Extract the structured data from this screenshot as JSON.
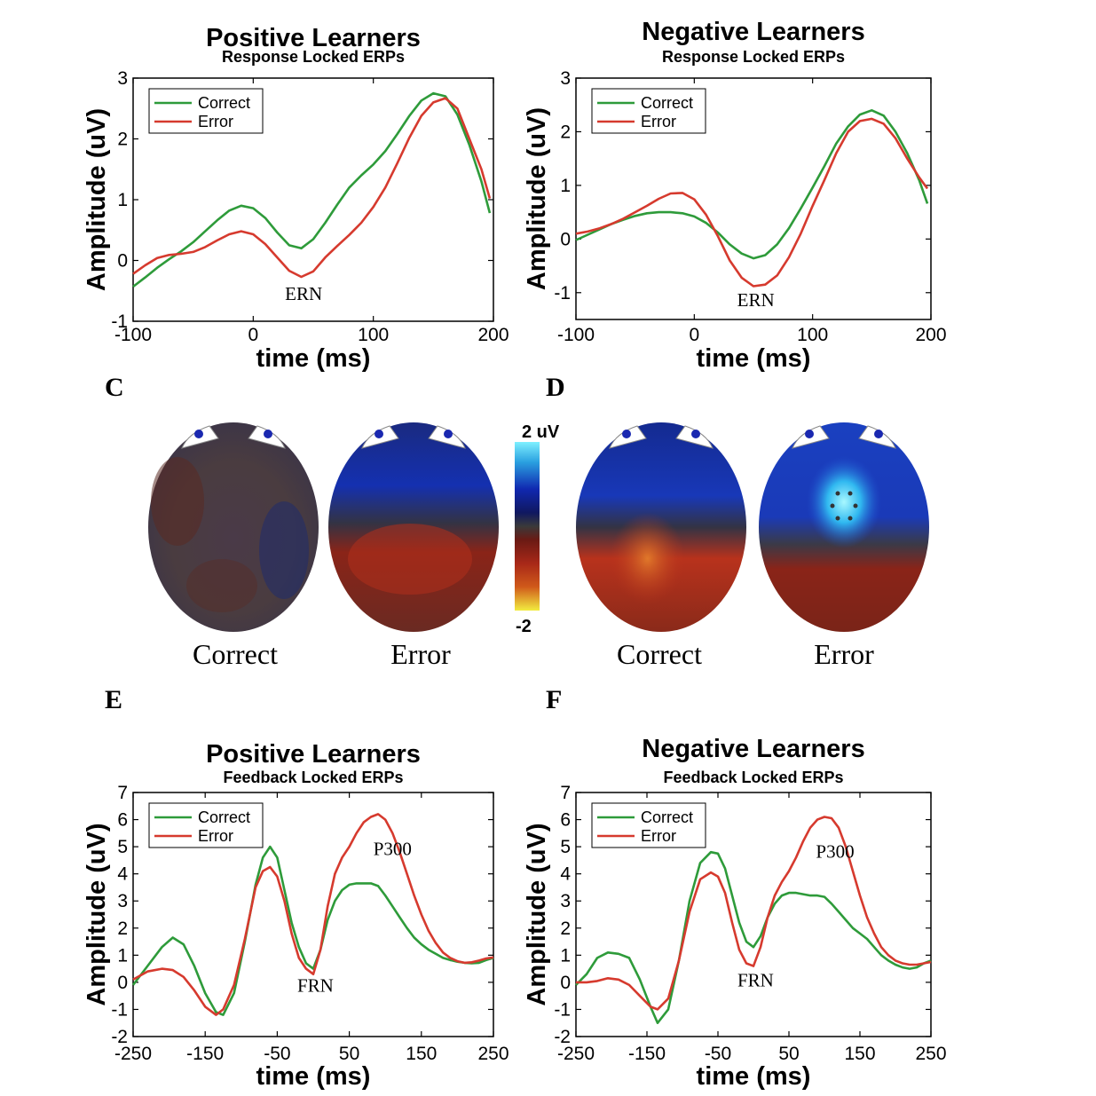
{
  "colors": {
    "correct": "#2e9b3a",
    "error": "#d63a2e"
  },
  "panels": {
    "A": "",
    "B": "",
    "C": "C",
    "D": "D",
    "E": "E",
    "F": "F"
  },
  "topomaps": {
    "colorbar_max": "2 uV",
    "colorbar_min": "-2",
    "labels": [
      "Correct",
      "Error",
      "Correct",
      "Error"
    ]
  },
  "chart_data": [
    {
      "type": "line",
      "title": "Positive Learners",
      "subtitle": "Response Locked ERPs",
      "xlabel": "time (ms)",
      "ylabel": "Amplitude (uV)",
      "xlim": [
        -100,
        200
      ],
      "ylim": [
        -1,
        3
      ],
      "xticks": [
        "-100",
        "0",
        "100",
        "200"
      ],
      "yticks": [
        "-1",
        "0",
        "1",
        "2",
        "3"
      ],
      "legend": {
        "position": "top-left",
        "entries": [
          "Correct",
          "Error"
        ]
      },
      "annotations": [
        {
          "text": "ERN",
          "x": 42,
          "y": -0.65
        }
      ],
      "series": [
        {
          "name": "Correct",
          "x": [
            -100,
            -90,
            -80,
            -70,
            -60,
            -50,
            -40,
            -30,
            -20,
            -10,
            0,
            10,
            20,
            30,
            40,
            50,
            60,
            70,
            80,
            90,
            100,
            110,
            120,
            130,
            140,
            150,
            160,
            170,
            180,
            190,
            197
          ],
          "y": [
            -0.43,
            -0.28,
            -0.12,
            0.02,
            0.15,
            0.3,
            0.48,
            0.66,
            0.82,
            0.9,
            0.86,
            0.7,
            0.46,
            0.25,
            0.2,
            0.35,
            0.62,
            0.92,
            1.2,
            1.4,
            1.58,
            1.8,
            2.08,
            2.38,
            2.63,
            2.75,
            2.7,
            2.4,
            1.9,
            1.3,
            0.78
          ]
        },
        {
          "name": "Error",
          "x": [
            -100,
            -90,
            -80,
            -70,
            -60,
            -50,
            -40,
            -30,
            -20,
            -10,
            0,
            10,
            20,
            30,
            40,
            50,
            60,
            70,
            80,
            90,
            100,
            110,
            120,
            130,
            140,
            150,
            160,
            170,
            180,
            190,
            197
          ],
          "y": [
            -0.22,
            -0.08,
            0.04,
            0.09,
            0.11,
            0.14,
            0.22,
            0.33,
            0.43,
            0.48,
            0.43,
            0.27,
            0.05,
            -0.17,
            -0.27,
            -0.18,
            0.05,
            0.24,
            0.42,
            0.62,
            0.88,
            1.2,
            1.6,
            2.02,
            2.38,
            2.6,
            2.67,
            2.5,
            2.0,
            1.5,
            1.02
          ]
        }
      ]
    },
    {
      "type": "line",
      "title": "Negative Learners",
      "subtitle": "Response Locked ERPs",
      "xlabel": "time (ms)",
      "ylabel": "Amplitude (uV)",
      "xlim": [
        -100,
        200
      ],
      "ylim": [
        -1.5,
        3
      ],
      "xticks": [
        "-100",
        "0",
        "100",
        "200"
      ],
      "yticks": [
        "-1",
        "0",
        "1",
        "2",
        "3"
      ],
      "legend": {
        "position": "top-left",
        "entries": [
          "Correct",
          "Error"
        ]
      },
      "annotations": [
        {
          "text": "ERN",
          "x": 52,
          "y": -1.25
        }
      ],
      "series": [
        {
          "name": "Correct",
          "x": [
            -100,
            -90,
            -80,
            -70,
            -60,
            -50,
            -40,
            -30,
            -20,
            -10,
            0,
            10,
            20,
            30,
            40,
            50,
            60,
            70,
            80,
            90,
            100,
            110,
            120,
            130,
            140,
            150,
            160,
            170,
            180,
            190,
            197
          ],
          "y": [
            -0.02,
            0.08,
            0.18,
            0.28,
            0.36,
            0.43,
            0.48,
            0.5,
            0.5,
            0.48,
            0.42,
            0.3,
            0.12,
            -0.1,
            -0.27,
            -0.36,
            -0.3,
            -0.1,
            0.2,
            0.57,
            0.96,
            1.36,
            1.78,
            2.1,
            2.32,
            2.4,
            2.3,
            2.0,
            1.6,
            1.1,
            0.66
          ]
        },
        {
          "name": "Error",
          "x": [
            -100,
            -90,
            -80,
            -70,
            -60,
            -50,
            -40,
            -30,
            -20,
            -10,
            0,
            10,
            20,
            30,
            40,
            50,
            60,
            70,
            80,
            90,
            100,
            110,
            120,
            130,
            140,
            150,
            160,
            170,
            180,
            190,
            197
          ],
          "y": [
            0.1,
            0.14,
            0.2,
            0.28,
            0.38,
            0.5,
            0.62,
            0.75,
            0.85,
            0.86,
            0.74,
            0.45,
            0.05,
            -0.4,
            -0.72,
            -0.88,
            -0.85,
            -0.68,
            -0.34,
            0.1,
            0.62,
            1.1,
            1.6,
            2.0,
            2.2,
            2.24,
            2.15,
            1.88,
            1.5,
            1.15,
            0.94
          ]
        }
      ]
    },
    {
      "type": "line",
      "title": "Positive Learners",
      "subtitle": "Feedback Locked ERPs",
      "xlabel": "time (ms)",
      "ylabel": "Amplitude (uV)",
      "xlim": [
        -250,
        250
      ],
      "ylim": [
        -2,
        7
      ],
      "xticks": [
        "-250",
        "-150",
        "-50",
        "50",
        "150",
        "250"
      ],
      "yticks": [
        "-2",
        "-1",
        "0",
        "1",
        "2",
        "3",
        "4",
        "5",
        "6",
        "7"
      ],
      "legend": {
        "position": "top-left",
        "entries": [
          "Correct",
          "Error"
        ]
      },
      "annotations": [
        {
          "text": "FRN",
          "x": 3,
          "y": -0.35
        },
        {
          "text": "P300",
          "x": 110,
          "y": 4.7
        }
      ],
      "series": [
        {
          "name": "Correct",
          "x": [
            -250,
            -230,
            -210,
            -195,
            -180,
            -165,
            -150,
            -135,
            -125,
            -110,
            -95,
            -80,
            -70,
            -60,
            -50,
            -40,
            -30,
            -20,
            -10,
            0,
            10,
            20,
            30,
            40,
            50,
            60,
            70,
            80,
            90,
            100,
            110,
            120,
            130,
            140,
            150,
            160,
            170,
            180,
            190,
            200,
            210,
            220,
            230,
            240,
            250
          ],
          "y": [
            -0.1,
            0.6,
            1.3,
            1.65,
            1.4,
            0.6,
            -0.4,
            -1.1,
            -1.2,
            -0.4,
            1.5,
            3.6,
            4.6,
            5.0,
            4.6,
            3.4,
            2.2,
            1.3,
            0.7,
            0.5,
            1.2,
            2.3,
            3.0,
            3.4,
            3.6,
            3.65,
            3.65,
            3.65,
            3.55,
            3.2,
            2.8,
            2.4,
            2.0,
            1.65,
            1.4,
            1.2,
            1.05,
            0.9,
            0.82,
            0.76,
            0.72,
            0.7,
            0.72,
            0.82,
            0.9
          ]
        },
        {
          "name": "Error",
          "x": [
            -250,
            -230,
            -210,
            -195,
            -180,
            -165,
            -150,
            -135,
            -125,
            -110,
            -95,
            -80,
            -70,
            -60,
            -50,
            -40,
            -30,
            -20,
            -10,
            0,
            10,
            20,
            30,
            40,
            50,
            60,
            70,
            80,
            90,
            100,
            110,
            120,
            130,
            140,
            150,
            160,
            170,
            180,
            190,
            200,
            210,
            220,
            230,
            240,
            250
          ],
          "y": [
            0.1,
            0.4,
            0.5,
            0.45,
            0.2,
            -0.3,
            -0.9,
            -1.2,
            -1.0,
            -0.1,
            1.6,
            3.5,
            4.1,
            4.25,
            3.9,
            3.0,
            1.8,
            0.9,
            0.5,
            0.3,
            1.2,
            2.8,
            4.0,
            4.6,
            5.0,
            5.5,
            5.9,
            6.1,
            6.2,
            6.0,
            5.5,
            4.8,
            4.0,
            3.2,
            2.5,
            1.9,
            1.45,
            1.1,
            0.9,
            0.78,
            0.72,
            0.74,
            0.8,
            0.88,
            0.92
          ]
        }
      ]
    },
    {
      "type": "line",
      "title": "Negative Learners",
      "subtitle": "Feedback Locked ERPs",
      "xlabel": "time (ms)",
      "ylabel": "Amplitude (uV)",
      "xlim": [
        -250,
        250
      ],
      "ylim": [
        -2,
        7
      ],
      "xticks": [
        "-250",
        "-150",
        "-50",
        "50",
        "150",
        "250"
      ],
      "yticks": [
        "-2",
        "-1",
        "0",
        "1",
        "2",
        "3",
        "4",
        "5",
        "6",
        "7"
      ],
      "legend": {
        "position": "top-left",
        "entries": [
          "Correct",
          "Error"
        ]
      },
      "annotations": [
        {
          "text": "FRN",
          "x": 3,
          "y": -0.15
        },
        {
          "text": "P300",
          "x": 115,
          "y": 4.6
        }
      ],
      "series": [
        {
          "name": "Correct",
          "x": [
            -250,
            -235,
            -220,
            -205,
            -190,
            -175,
            -160,
            -145,
            -135,
            -120,
            -105,
            -90,
            -75,
            -60,
            -50,
            -40,
            -30,
            -20,
            -10,
            0,
            10,
            20,
            30,
            40,
            50,
            60,
            70,
            80,
            90,
            100,
            110,
            120,
            130,
            140,
            150,
            160,
            170,
            180,
            190,
            200,
            210,
            220,
            230,
            240,
            250
          ],
          "y": [
            -0.1,
            0.3,
            0.9,
            1.1,
            1.05,
            0.9,
            0.1,
            -0.9,
            -1.5,
            -1.0,
            0.8,
            3.0,
            4.4,
            4.8,
            4.75,
            4.2,
            3.2,
            2.2,
            1.5,
            1.3,
            1.7,
            2.4,
            2.9,
            3.2,
            3.3,
            3.3,
            3.25,
            3.2,
            3.2,
            3.15,
            2.9,
            2.6,
            2.3,
            2.0,
            1.8,
            1.6,
            1.3,
            1.0,
            0.8,
            0.65,
            0.55,
            0.5,
            0.55,
            0.7,
            0.8
          ]
        },
        {
          "name": "Error",
          "x": [
            -250,
            -235,
            -220,
            -205,
            -190,
            -175,
            -160,
            -145,
            -135,
            -120,
            -105,
            -90,
            -75,
            -60,
            -50,
            -40,
            -30,
            -20,
            -10,
            0,
            10,
            20,
            30,
            40,
            50,
            60,
            70,
            80,
            90,
            100,
            110,
            120,
            130,
            140,
            150,
            160,
            170,
            180,
            190,
            200,
            210,
            220,
            230,
            240,
            250
          ],
          "y": [
            0.0,
            0.0,
            0.05,
            0.15,
            0.1,
            -0.1,
            -0.5,
            -0.9,
            -1.0,
            -0.6,
            0.8,
            2.6,
            3.8,
            4.05,
            3.9,
            3.3,
            2.2,
            1.2,
            0.7,
            0.6,
            1.3,
            2.4,
            3.2,
            3.7,
            4.1,
            4.6,
            5.2,
            5.7,
            6.0,
            6.1,
            6.05,
            5.7,
            5.0,
            4.1,
            3.2,
            2.4,
            1.8,
            1.3,
            1.0,
            0.8,
            0.7,
            0.65,
            0.65,
            0.7,
            0.75
          ]
        }
      ]
    }
  ]
}
